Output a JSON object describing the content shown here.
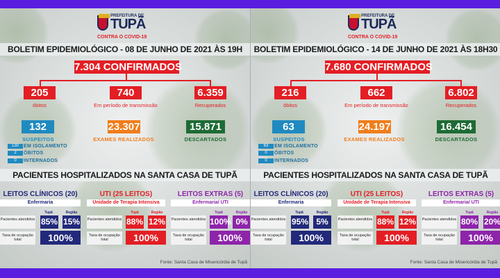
{
  "colors": {
    "purple_bar": "#5a1de0",
    "red": "#e31e24",
    "blue": "#1f8ac0",
    "orange": "#f07d1b",
    "green": "#1e6b35",
    "navy": "#22297a",
    "purple": "#8e24aa"
  },
  "panels": [
    {
      "logo": {
        "prefeitura": "PREFEITURA DE",
        "city": "TUPÃ",
        "tagline": "CONTRA O COVID-19"
      },
      "title": "BOLETIM EPIDEMIOLÓGICO - 08 DE JUNHO DE 2021 ÀS 19H",
      "confirmed": "7.304  CONFIRMADOS",
      "stats": [
        {
          "value": "205",
          "label": "óbitos"
        },
        {
          "value": "740",
          "label": "Em período de transmissão"
        },
        {
          "value": "6.359",
          "label": "Recuperados"
        }
      ],
      "stats2": [
        {
          "value": "132",
          "label": "SUSPEITOS"
        },
        {
          "value": "23.307",
          "label": "EXAMES REALIZADOS"
        },
        {
          "value": "15.871",
          "label": "DESCARTADOS"
        }
      ],
      "suspects": [
        {
          "value": "130",
          "label": "EM ISOLAMENTO"
        },
        {
          "value": "2",
          "label": "ÓBITOS"
        },
        {
          "value": "0",
          "label": "INTERNADOS"
        }
      ],
      "hosp_title": "PACIENTES HOSPITALIZADOS NA SANTA CASA DE TUPÃ",
      "units": [
        {
          "title": "LEITOS CLÍNICOS (20)",
          "subtitle": "Enfermaria",
          "tupa": "85%",
          "regiao": "15%",
          "total": "100%"
        },
        {
          "title": "UTI (25 LEITOS)",
          "subtitle": "Unidade de Terapia Intensiva",
          "tupa": "88%",
          "regiao": "12%",
          "total": "100%"
        },
        {
          "title": "LEITOS EXTRAS (5)",
          "subtitle": "Enfermaria/ UTI",
          "tupa": "100%",
          "regiao": "0%",
          "total": "100%"
        }
      ],
      "col_tupa": "Tupã",
      "col_regiao": "Região",
      "row_pacientes": "Pacientes atendidos",
      "row_taxa": "Taxa de ocupação total",
      "fonte": "Fonte: Santa Casa de Misericórdia de Tupã"
    },
    {
      "logo": {
        "prefeitura": "PREFEITURA DE",
        "city": "TUPÃ",
        "tagline": "CONTRA O COVID-19"
      },
      "title": "BOLETIM EPIDEMIOLÓGICO - 14 DE JUNHO DE 2021 ÀS 18H30",
      "confirmed": "7.680  CONFIRMADOS",
      "stats": [
        {
          "value": "216",
          "label": "óbitos"
        },
        {
          "value": "662",
          "label": "Em período de transmissão"
        },
        {
          "value": "6.802",
          "label": "Recuperados"
        }
      ],
      "stats2": [
        {
          "value": "63",
          "label": "SUSPEITOS"
        },
        {
          "value": "24.197",
          "label": "EXAMES REALIZADOS"
        },
        {
          "value": "16.454",
          "label": "DESCARTADOS"
        }
      ],
      "suspects": [
        {
          "value": "63",
          "label": "EM ISOLAMENTO"
        },
        {
          "value": "0",
          "label": "ÓBITOS"
        },
        {
          "value": "0",
          "label": "INTERNADOS"
        }
      ],
      "hosp_title": "PACIENTES HOSPITALIZADOS NA SANTA CASA DE TUPÃ",
      "units": [
        {
          "title": "LEITOS CLÍNICOS (20)",
          "subtitle": "Enfermaria",
          "tupa": "95%",
          "regiao": "5%",
          "total": "100%"
        },
        {
          "title": "UTI (25 LEITOS)",
          "subtitle": "Unidade de Terapia Intensiva",
          "tupa": "88%",
          "regiao": "12%",
          "total": "100%"
        },
        {
          "title": "LEITOS EXTRAS (5)",
          "subtitle": "Enfermaria/ UTI",
          "tupa": "80%",
          "regiao": "20%",
          "total": "100%"
        }
      ],
      "col_tupa": "Tupã",
      "col_regiao": "Região",
      "row_pacientes": "Pacientes atendidos",
      "row_taxa": "Taxa de ocupação total",
      "fonte": "Fonte: Santa Casa de Misericórdia de Tupã"
    }
  ]
}
